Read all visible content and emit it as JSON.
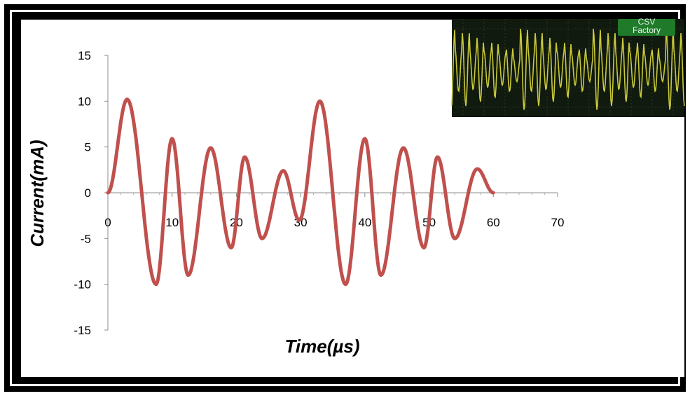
{
  "chart_data": {
    "type": "line",
    "title": "",
    "xlabel": "Time(µs)",
    "ylabel": "Current(mA)",
    "xlim": [
      0,
      70
    ],
    "ylim": [
      -15,
      15
    ],
    "xticks": [
      0,
      10,
      20,
      30,
      40,
      50,
      60,
      70
    ],
    "yticks": [
      15,
      10,
      5,
      0,
      -5,
      -10,
      -15
    ],
    "grid": false,
    "legend": "none",
    "series": [
      {
        "color": "#c0504d",
        "x": [
          0,
          3,
          7.5,
          10,
          12.5,
          16,
          19.2,
          21.3,
          24,
          27.3,
          29.8,
          33,
          37,
          40,
          42.5,
          46,
          49.2,
          51.3,
          54,
          57.5,
          60
        ],
        "y": [
          0,
          10.2,
          -10,
          5.9,
          -9,
          4.9,
          -6,
          3.9,
          -5,
          2.4,
          -3,
          10,
          -10,
          5.9,
          -9,
          4.9,
          -6,
          3.9,
          -5,
          2.6,
          0
        ]
      }
    ]
  },
  "inset": {
    "badge_text": "CSV Factory",
    "colors": {
      "background": "#111a0e",
      "grid": "#3f4a34",
      "trace": "#c8c83a",
      "badge": "#1f7a2a"
    }
  }
}
